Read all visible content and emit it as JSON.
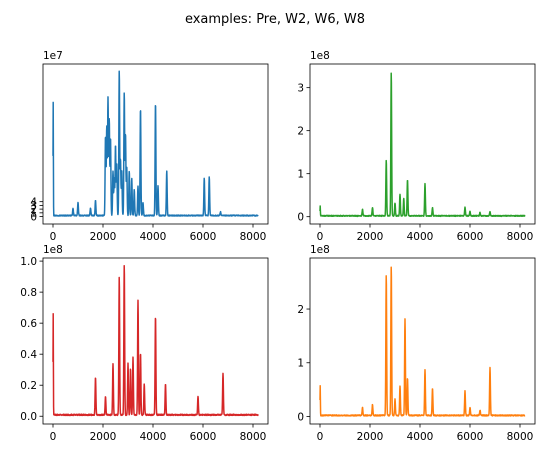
{
  "figure": {
    "suptitle": "examples: Pre, W2, W6, W8"
  },
  "chart_data": [
    {
      "type": "line",
      "panel": "top-left",
      "color": "#1f77b4",
      "offset_label": "1e7",
      "xlim": [
        -400,
        8600
      ],
      "ylim": [
        -2,
        41
      ],
      "x_ticks": [
        0,
        2000,
        4000,
        6000,
        8000
      ],
      "y_ticks": [
        0,
        1,
        2,
        3,
        4
      ],
      "y_tick_labels": [
        "0",
        "1",
        "2",
        "3",
        "4"
      ],
      "x_range": [
        0,
        8200
      ],
      "baseline": 0.15,
      "noise": 0.25,
      "peaks": [
        [
          8,
          30.5
        ],
        [
          800,
          1.8
        ],
        [
          1000,
          3.5
        ],
        [
          1500,
          2
        ],
        [
          1700,
          4
        ],
        [
          2100,
          21.5
        ],
        [
          2150,
          24
        ],
        [
          2200,
          31.5
        ],
        [
          2250,
          26
        ],
        [
          2300,
          21
        ],
        [
          2400,
          12
        ],
        [
          2450,
          10
        ],
        [
          2500,
          19
        ],
        [
          2550,
          14
        ],
        [
          2650,
          39
        ],
        [
          2700,
          15
        ],
        [
          2750,
          12
        ],
        [
          2850,
          33
        ],
        [
          2900,
          22
        ],
        [
          2950,
          13
        ],
        [
          3050,
          12
        ],
        [
          3150,
          10
        ],
        [
          3250,
          7
        ],
        [
          3400,
          8
        ],
        [
          3500,
          29
        ],
        [
          3600,
          3.5
        ],
        [
          4100,
          30.5
        ],
        [
          4200,
          8
        ],
        [
          4550,
          12
        ],
        [
          6050,
          10
        ],
        [
          6250,
          10.5
        ],
        [
          6700,
          1
        ]
      ]
    },
    {
      "type": "line",
      "panel": "top-right",
      "color": "#2ca02c",
      "offset_label": "1e8",
      "xlim": [
        -400,
        8600
      ],
      "ylim": [
        -0.17,
        3.55
      ],
      "x_ticks": [
        0,
        2000,
        4000,
        6000,
        8000
      ],
      "y_ticks": [
        0,
        1,
        2,
        3
      ],
      "y_tick_labels": [
        "0",
        "1",
        "2",
        "3"
      ],
      "x_range": [
        0,
        8200
      ],
      "baseline": 0.01,
      "noise": 0.02,
      "peaks": [
        [
          8,
          0.22
        ],
        [
          1700,
          0.15
        ],
        [
          2100,
          0.2
        ],
        [
          2650,
          1.3
        ],
        [
          2850,
          3.35
        ],
        [
          3000,
          0.3
        ],
        [
          3200,
          0.5
        ],
        [
          3350,
          0.4
        ],
        [
          3500,
          0.85
        ],
        [
          4200,
          0.75
        ],
        [
          4500,
          0.2
        ],
        [
          5800,
          0.2
        ],
        [
          6000,
          0.1
        ],
        [
          6400,
          0.08
        ],
        [
          6800,
          0.1
        ]
      ]
    },
    {
      "type": "line",
      "panel": "bottom-left",
      "color": "#d62728",
      "offset_label": "1e8",
      "xlim": [
        -400,
        8600
      ],
      "ylim": [
        -0.05,
        1.02
      ],
      "x_ticks": [
        0,
        2000,
        4000,
        6000,
        8000
      ],
      "y_ticks": [
        0,
        0.2,
        0.4,
        0.6,
        0.8,
        1.0
      ],
      "y_tick_labels": [
        "0.0",
        "0.2",
        "0.4",
        "0.6",
        "0.8",
        "1.0"
      ],
      "x_range": [
        0,
        8200
      ],
      "baseline": 0.005,
      "noise": 0.008,
      "peaks": [
        [
          8,
          0.65
        ],
        [
          1700,
          0.24
        ],
        [
          2100,
          0.12
        ],
        [
          2400,
          0.33
        ],
        [
          2650,
          0.89
        ],
        [
          2850,
          0.97
        ],
        [
          3000,
          0.33
        ],
        [
          3100,
          0.3
        ],
        [
          3200,
          0.37
        ],
        [
          3400,
          0.74
        ],
        [
          3500,
          0.4
        ],
        [
          3650,
          0.2
        ],
        [
          4100,
          0.64
        ],
        [
          4500,
          0.2
        ],
        [
          5800,
          0.12
        ],
        [
          6800,
          0.27
        ]
      ]
    },
    {
      "type": "line",
      "panel": "bottom-right",
      "color": "#ff7f0e",
      "offset_label": "1e8",
      "xlim": [
        -400,
        8600
      ],
      "ylim": [
        -0.14,
        2.95
      ],
      "x_ticks": [
        0,
        2000,
        4000,
        6000,
        8000
      ],
      "y_ticks": [
        0,
        1,
        2
      ],
      "y_tick_labels": [
        "0",
        "1",
        "2"
      ],
      "x_range": [
        0,
        8200
      ],
      "baseline": 0.01,
      "noise": 0.02,
      "peaks": [
        [
          8,
          0.55
        ],
        [
          1700,
          0.15
        ],
        [
          2100,
          0.2
        ],
        [
          2650,
          2.62
        ],
        [
          2850,
          2.78
        ],
        [
          3000,
          0.3
        ],
        [
          3200,
          0.55
        ],
        [
          3400,
          1.8
        ],
        [
          3500,
          0.7
        ],
        [
          4200,
          0.85
        ],
        [
          4500,
          0.5
        ],
        [
          5800,
          0.45
        ],
        [
          6000,
          0.15
        ],
        [
          6400,
          0.1
        ],
        [
          6800,
          0.9
        ]
      ]
    }
  ]
}
